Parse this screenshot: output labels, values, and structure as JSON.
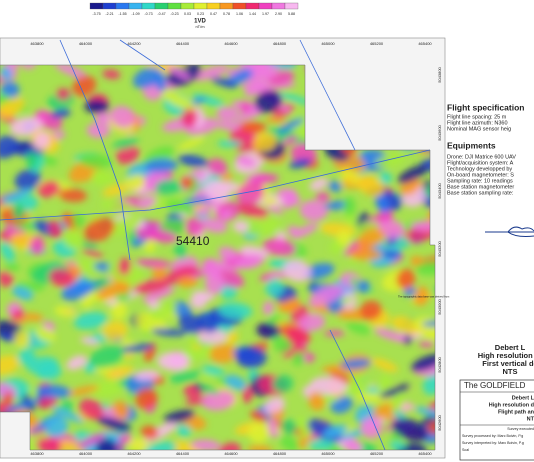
{
  "colorbar": {
    "labels": [
      "-3.75",
      "-2.21",
      "-1.55",
      "-1.09",
      "-0.73",
      "-0.47",
      "-0.23",
      "0.03",
      "0.23",
      "0.47",
      "0.78",
      "1.06",
      "1.44",
      "1.97",
      "2.90",
      "5.88"
    ],
    "colors": [
      "#1a1a8c",
      "#1f3fd0",
      "#2a78f0",
      "#38b4f0",
      "#30d8c8",
      "#28d070",
      "#60e040",
      "#a8ec38",
      "#e0f030",
      "#f8d020",
      "#f89820",
      "#f05028",
      "#f02870",
      "#f040c0",
      "#f078e0",
      "#f8b8f0"
    ],
    "title": "1VD",
    "unit": "nT/m"
  },
  "map": {
    "x_labels": [
      "463800",
      "464000",
      "464200",
      "464400",
      "464600",
      "464800",
      "465000",
      "465200",
      "465400"
    ],
    "y_labels": [
      "5043800",
      "5043600",
      "5043400",
      "5043200",
      "5043000",
      "5042800",
      "5042600"
    ],
    "block_label": "54410",
    "footnote": "The topographic data base was derived from"
  },
  "panel": {
    "flight_title": "Flight specification",
    "flight_lines": [
      "Flight line spacing: 25 m",
      "Flight line azimuth: N360",
      "Nominal MAG sensor heig"
    ],
    "equip_title": "Equipments",
    "equip_lines": [
      "Drone: DJI Matrice 600 UAV",
      "Flight/acquisition system: A",
      "Technology developped by",
      "On-board magnetometer: S",
      "Sampling rate: 10 readings",
      "Base station magnetometer",
      "Base station sampling rate:"
    ],
    "heading": [
      "Debert L",
      "High resolution dr",
      "First vertical de",
      "NTS"
    ],
    "box_title": "The GOLDFIELD",
    "box_lines": [
      "Debert L",
      "High resolution d",
      "Flight path an",
      "NT"
    ],
    "box_small": [
      "Survey executed",
      "Survey processed by: Marc Boivin, P.g",
      "Survey interpreted by: Marc Boivin, P.g",
      "Scal"
    ]
  }
}
